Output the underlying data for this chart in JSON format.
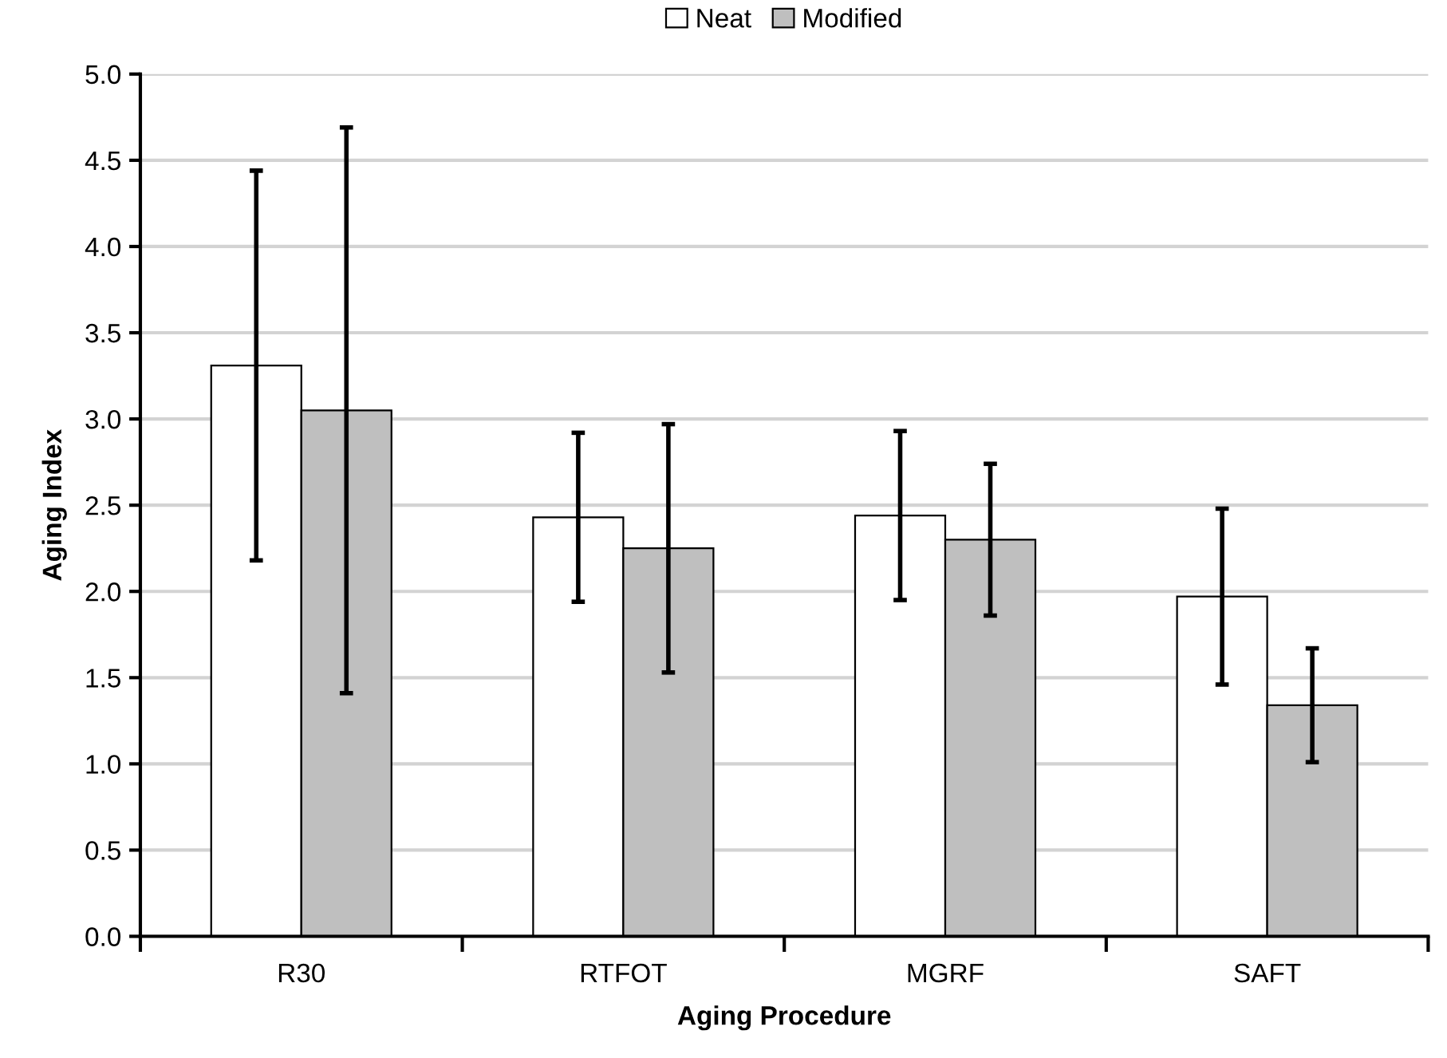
{
  "chart_data": {
    "type": "bar",
    "xlabel": "Aging Procedure",
    "ylabel": "Aging Index",
    "categories": [
      "R30",
      "RTFOT",
      "MGRF",
      "SAFT"
    ],
    "series": [
      {
        "name": "Neat",
        "color": "#ffffff",
        "values": [
          3.31,
          2.43,
          2.44,
          1.97
        ],
        "errors": [
          1.13,
          0.49,
          0.49,
          0.51
        ]
      },
      {
        "name": "Modified",
        "color": "#bfbfbf",
        "values": [
          3.05,
          2.25,
          2.3,
          1.34
        ],
        "errors": [
          1.64,
          0.72,
          0.44,
          0.33
        ]
      }
    ],
    "ylim": [
      0,
      5
    ],
    "yticks": [
      {
        "value": 0,
        "label": "0.0"
      },
      {
        "value": 0.5,
        "label": "0.5"
      },
      {
        "value": 1,
        "label": "1.0"
      },
      {
        "value": 1.5,
        "label": "1.5"
      },
      {
        "value": 2,
        "label": "2.0"
      },
      {
        "value": 2.5,
        "label": "2.5"
      },
      {
        "value": 3,
        "label": "3.0"
      },
      {
        "value": 3.5,
        "label": "3.5"
      },
      {
        "value": 4,
        "label": "4.0"
      },
      {
        "value": 4.5,
        "label": "4.5"
      },
      {
        "value": 5,
        "label": "5.0"
      }
    ],
    "grid": "y",
    "legend": "top"
  }
}
